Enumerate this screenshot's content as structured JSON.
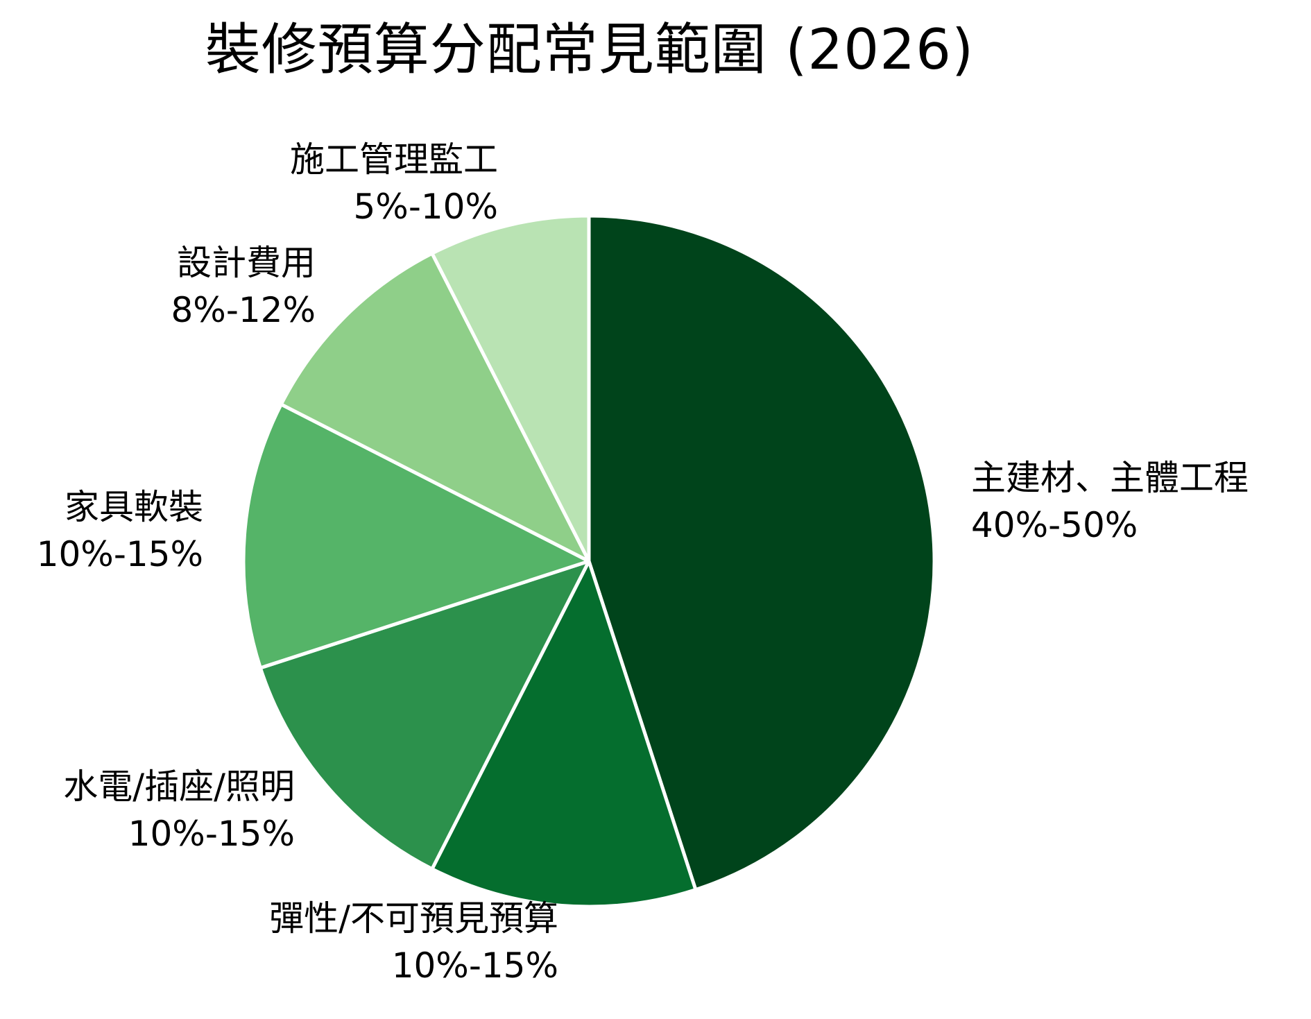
{
  "chart_data": {
    "type": "pie",
    "title": "裝修預算分配常見範圍 (2026)",
    "start_angle": "top (12 o'clock), clockwise",
    "categories": [
      "主建材、主體工程",
      "彈性/不可預見預算",
      "水電/插座/照明",
      "家具軟裝",
      "設計費用",
      "施工管理監工"
    ],
    "ranges": [
      "40%-50%",
      "10%-15%",
      "10%-15%",
      "10%-15%",
      "8%-12%",
      "5%-10%"
    ],
    "values": [
      45,
      12.5,
      12.5,
      12.5,
      10,
      7.5
    ],
    "colors": [
      "#00441b",
      "#056e2e",
      "#2c914c",
      "#55b468",
      "#8fcf89",
      "#b9e3b3"
    ],
    "legend": "none (labels placed beside slices)",
    "edge_color": "#ffffff"
  },
  "title": "裝修預算分配常見範圍 (2026)",
  "labels": [
    {
      "name": "主建材、主體工程",
      "range": "40%-50%"
    },
    {
      "name": "彈性/不可預見預算",
      "range": "10%-15%"
    },
    {
      "name": "水電/插座/照明",
      "range": "10%-15%"
    },
    {
      "name": "家具軟裝",
      "range": "10%-15%"
    },
    {
      "name": "設計費用",
      "range": "8%-12%"
    },
    {
      "name": "施工管理監工",
      "range": "5%-10%"
    }
  ]
}
